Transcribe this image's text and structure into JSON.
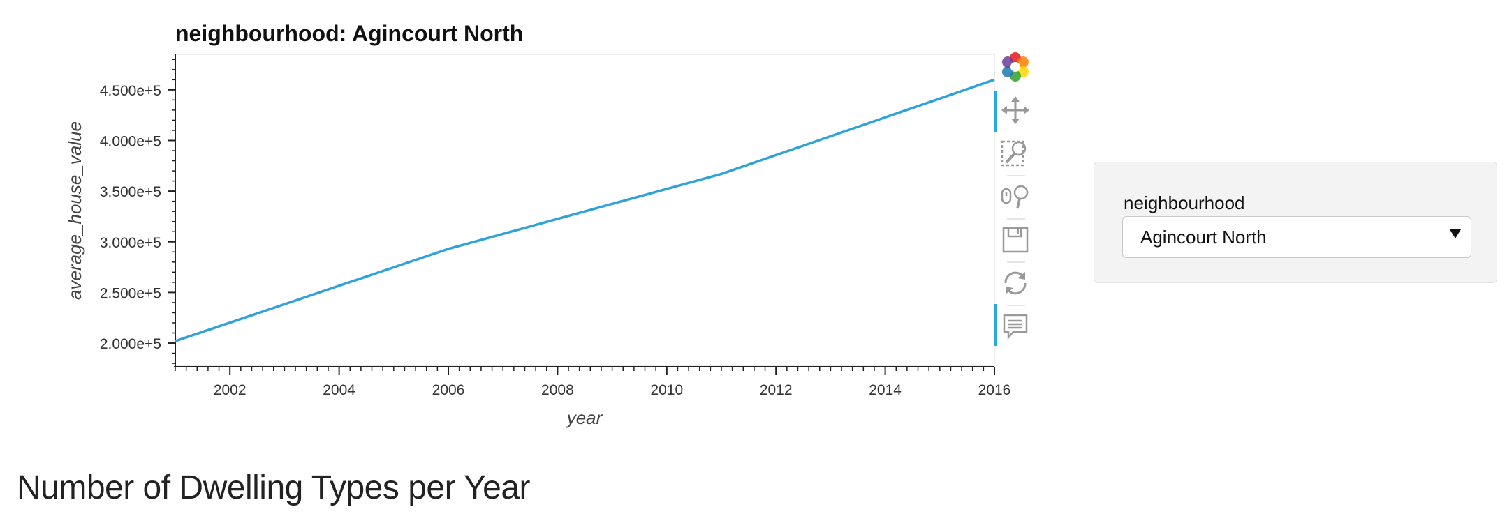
{
  "plot": {
    "title": "neighbourhood: Agincourt North"
  },
  "chart_data": {
    "type": "line",
    "title": "neighbourhood: Agincourt North",
    "xlabel": "year",
    "ylabel": "average_house_value",
    "xlim": [
      2001,
      2016
    ],
    "ylim": [
      178000,
      485000
    ],
    "x_ticks": [
      2002,
      2004,
      2006,
      2008,
      2010,
      2012,
      2014,
      2016
    ],
    "x_tick_labels": [
      "2002",
      "2004",
      "2006",
      "2008",
      "2010",
      "2012",
      "2014",
      "2016"
    ],
    "y_ticks": [
      200000,
      250000,
      300000,
      350000,
      400000,
      450000
    ],
    "y_tick_labels": [
      "2.000e+5",
      "2.500e+5",
      "3.000e+5",
      "3.500e+5",
      "4.000e+5",
      "4.500e+5"
    ],
    "series": [
      {
        "color": "#30a2da",
        "x": [
          2001,
          2006,
          2011,
          2016
        ],
        "y": [
          202000,
          293000,
          367000,
          460000
        ]
      }
    ],
    "grid": false,
    "legend": "none"
  },
  "toolbar": {
    "tools": [
      {
        "name": "bokeh-logo",
        "active": false
      },
      {
        "name": "pan-tool",
        "active": true
      },
      {
        "name": "box-zoom-tool",
        "active": false
      },
      {
        "name": "wheel-zoom-tool",
        "active": false
      },
      {
        "name": "save-tool",
        "active": false
      },
      {
        "name": "reset-tool",
        "active": false
      },
      {
        "name": "hover-tool",
        "active": true
      }
    ]
  },
  "widget": {
    "label": "neighbourhood",
    "selected": "Agincourt North"
  },
  "section": {
    "heading": "Number of Dwelling Types per Year"
  }
}
